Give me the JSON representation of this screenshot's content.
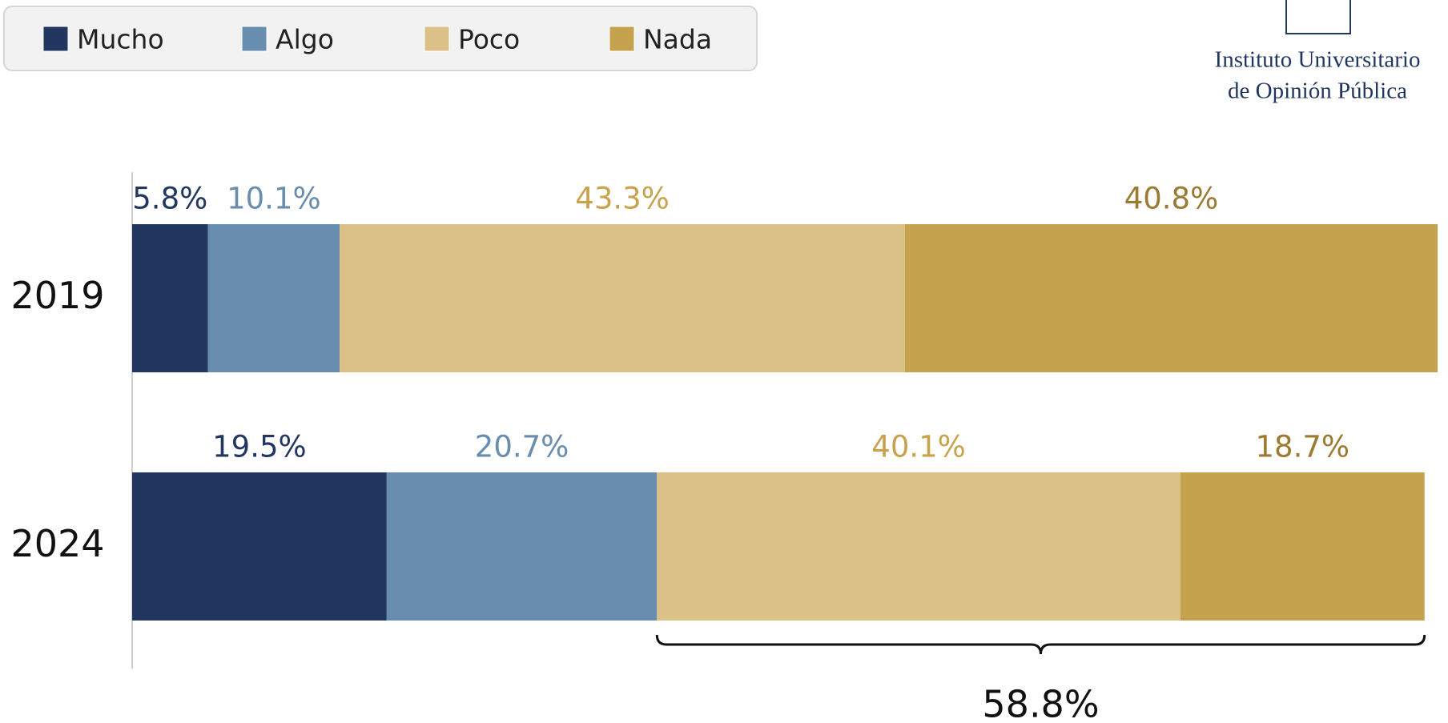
{
  "chart_data": {
    "type": "stacked-horizontal-bar",
    "categories": [
      "2019",
      "2024"
    ],
    "series": [
      {
        "name": "Mucho",
        "color": "#22375f",
        "label_color": "#22375f",
        "values": [
          5.8,
          19.5
        ],
        "value_labels": [
          "5.8%",
          "19.5%"
        ]
      },
      {
        "name": "Algo",
        "color": "#688dae",
        "label_color": "#688dae",
        "values": [
          10.1,
          20.7
        ],
        "value_labels": [
          "10.1%",
          "20.7%"
        ]
      },
      {
        "name": "Poco",
        "color": "#dbc187",
        "label_color": "#c9a24e",
        "values": [
          43.3,
          40.1
        ],
        "value_labels": [
          "43.3%",
          "40.1%"
        ]
      },
      {
        "name": "Nada",
        "color": "#c5a24d",
        "label_color": "#9c7a32",
        "values": [
          40.8,
          18.7
        ],
        "value_labels": [
          "40.8%",
          "18.7%"
        ]
      }
    ],
    "xlim": [
      0,
      100
    ],
    "brace_label": "58.8%",
    "logo": [
      "Instituto Universitario",
      "de Opinión Pública"
    ]
  }
}
